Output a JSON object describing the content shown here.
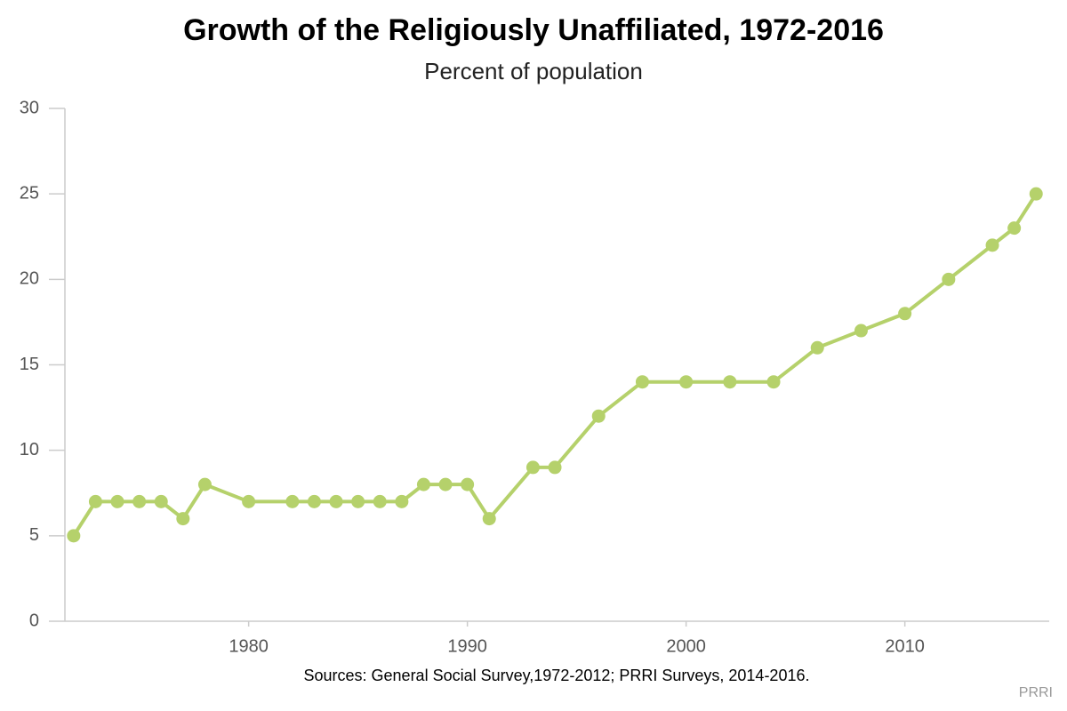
{
  "chart_data": {
    "type": "line",
    "title": "Growth of the Religiously Unaffiliated, 1972-2016",
    "subtitle": "Percent of population",
    "source": "Sources: General Social Survey,1972-2012; PRRI Surveys, 2014-2016.",
    "credit": "PRRI",
    "x": [
      1972,
      1973,
      1974,
      1975,
      1976,
      1977,
      1978,
      1980,
      1982,
      1983,
      1984,
      1985,
      1986,
      1987,
      1988,
      1989,
      1990,
      1991,
      1993,
      1994,
      1996,
      1998,
      2000,
      2002,
      2004,
      2006,
      2008,
      2010,
      2012,
      2014,
      2015,
      2016
    ],
    "series": [
      {
        "name": "Unaffiliated",
        "color": "#b5d16b",
        "values": [
          5,
          7,
          7,
          7,
          7,
          6,
          8,
          7,
          7,
          7,
          7,
          7,
          7,
          7,
          8,
          8,
          8,
          6,
          9,
          9,
          12,
          14,
          14,
          14,
          14,
          16,
          17,
          18,
          20,
          22,
          23,
          25
        ]
      }
    ],
    "xlim": [
      1971.6,
      2016.6
    ],
    "xticks": [
      1980,
      1990,
      2000,
      2010
    ],
    "ylim": [
      0,
      30
    ],
    "yticks": [
      0,
      5,
      10,
      15,
      20,
      25,
      30
    ]
  }
}
